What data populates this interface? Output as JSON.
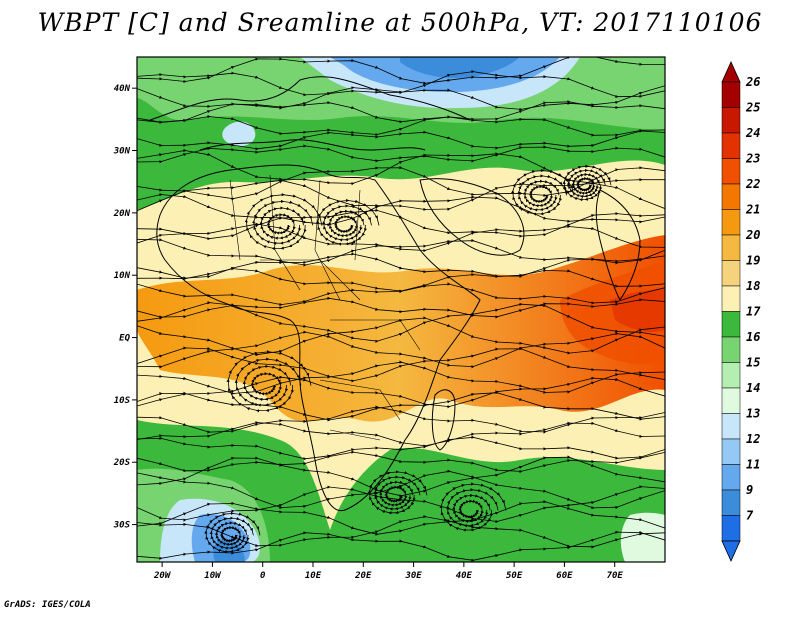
{
  "title": "WBPT [C] and Sreamline at 500hPa, VT: 2017110106",
  "footer": "GrADS: IGES/COLA",
  "colors": {
    "frame": "#000000",
    "coast": "#000000",
    "streamline": "#000000"
  },
  "map": {
    "lon_range": [
      -25,
      80
    ],
    "lat_range": [
      -36,
      45
    ],
    "x_ticks": [
      {
        "value": -20,
        "label": "20W"
      },
      {
        "value": -10,
        "label": "10W"
      },
      {
        "value": 0,
        "label": "0"
      },
      {
        "value": 10,
        "label": "10E"
      },
      {
        "value": 20,
        "label": "20E"
      },
      {
        "value": 30,
        "label": "30E"
      },
      {
        "value": 40,
        "label": "40E"
      },
      {
        "value": 50,
        "label": "50E"
      },
      {
        "value": 60,
        "label": "60E"
      },
      {
        "value": 70,
        "label": "70E"
      }
    ],
    "y_ticks": [
      {
        "value": 40,
        "label": "40N"
      },
      {
        "value": 30,
        "label": "30N"
      },
      {
        "value": 20,
        "label": "20N"
      },
      {
        "value": 10,
        "label": "10N"
      },
      {
        "value": 0,
        "label": "EQ"
      },
      {
        "value": -10,
        "label": "10S"
      },
      {
        "value": -20,
        "label": "20S"
      },
      {
        "value": -30,
        "label": "30S"
      }
    ]
  },
  "colorbar": {
    "labels": [
      "26",
      "25",
      "24",
      "23",
      "22",
      "21",
      "20",
      "19",
      "18",
      "17",
      "16",
      "15",
      "14",
      "13",
      "12",
      "11",
      "9",
      "7"
    ],
    "colors": [
      "#a50000",
      "#c81800",
      "#e23200",
      "#f05000",
      "#f47800",
      "#f59a10",
      "#f5b840",
      "#f5d37c",
      "#fdf0b4",
      "#3cb83c",
      "#78d470",
      "#b4eeb0",
      "#e0fae0",
      "#c8e6fa",
      "#96c8f5",
      "#64a8ee",
      "#3c8cdc",
      "#1e6ee6"
    ]
  }
}
